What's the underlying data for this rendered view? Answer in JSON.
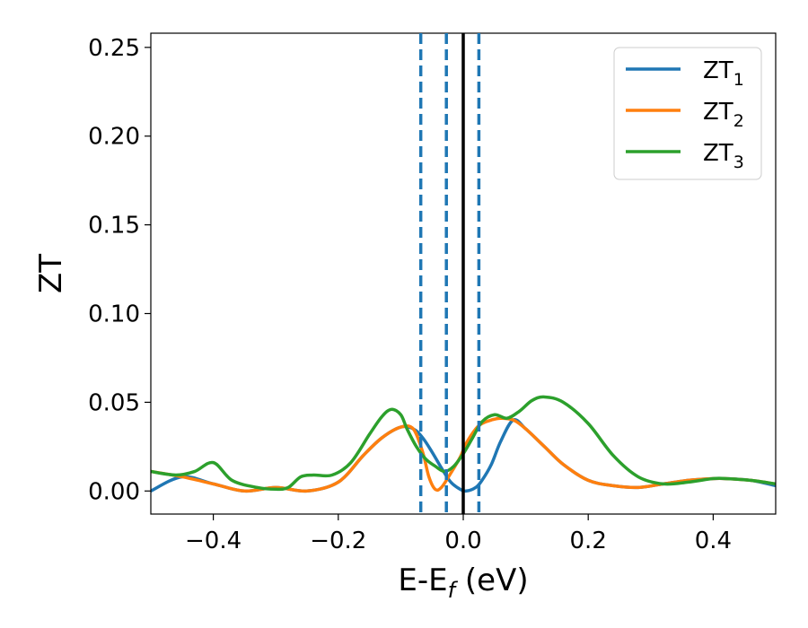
{
  "chart_data": {
    "type": "line",
    "xlabel": "E-E",
    "xlabel_sub": "f",
    "xlabel_unit": " (eV)",
    "ylabel": "ZT",
    "xlim": [
      -0.5,
      0.5
    ],
    "ylim": [
      -0.013,
      0.258
    ],
    "x_ticks": [
      -0.4,
      -0.2,
      0.0,
      0.2,
      0.4
    ],
    "x_tick_labels": [
      "−0.4",
      "−0.2",
      "0.0",
      "0.2",
      "0.4"
    ],
    "y_ticks": [
      0.0,
      0.05,
      0.1,
      0.15,
      0.2,
      0.25
    ],
    "y_tick_labels": [
      "0.00",
      "0.05",
      "0.10",
      "0.15",
      "0.20",
      "0.25"
    ],
    "grid": false,
    "legend_position": "top-right",
    "vertical_lines": [
      {
        "x": 0.0,
        "style": "solid",
        "color": "#000000"
      },
      {
        "x": -0.068,
        "style": "dashed",
        "color": "#1f77b4"
      },
      {
        "x": -0.027,
        "style": "dashed",
        "color": "#1f77b4"
      },
      {
        "x": 0.025,
        "style": "dashed",
        "color": "#1f77b4"
      }
    ],
    "series": [
      {
        "name": "ZT",
        "name_sub": "1",
        "color": "#1f77b4",
        "x": [
          -0.5,
          -0.45,
          -0.4,
          -0.35,
          -0.3,
          -0.25,
          -0.2,
          -0.16,
          -0.13,
          -0.1,
          -0.08,
          -0.065,
          -0.05,
          -0.035,
          -0.02,
          -0.005,
          0.005,
          0.02,
          0.03,
          0.045,
          0.06,
          0.08,
          0.1,
          0.13,
          0.16,
          0.2,
          0.24,
          0.28,
          0.32,
          0.36,
          0.4,
          0.42,
          0.46,
          0.5
        ],
        "y": [
          0.0,
          0.008,
          0.004,
          0.0,
          0.002,
          0.0,
          0.005,
          0.02,
          0.03,
          0.036,
          0.035,
          0.03,
          0.022,
          0.013,
          0.005,
          0.001,
          0.0,
          0.002,
          0.006,
          0.015,
          0.028,
          0.04,
          0.035,
          0.025,
          0.015,
          0.006,
          0.003,
          0.002,
          0.004,
          0.006,
          0.007,
          0.007,
          0.006,
          0.003
        ]
      },
      {
        "name": "ZT",
        "name_sub": "2",
        "color": "#ff7f0e",
        "x": [
          -0.5,
          -0.45,
          -0.4,
          -0.35,
          -0.3,
          -0.25,
          -0.2,
          -0.16,
          -0.13,
          -0.1,
          -0.08,
          -0.065,
          -0.055,
          -0.045,
          -0.035,
          -0.02,
          -0.005,
          0.005,
          0.02,
          0.03,
          0.045,
          0.06,
          0.08,
          0.1,
          0.13,
          0.16,
          0.2,
          0.24,
          0.28,
          0.32,
          0.36,
          0.4,
          0.42,
          0.46,
          0.5
        ],
        "y": [
          0.011,
          0.008,
          0.004,
          0.0,
          0.002,
          0.0,
          0.005,
          0.02,
          0.03,
          0.036,
          0.035,
          0.022,
          0.008,
          0.001,
          0.002,
          0.01,
          0.019,
          0.027,
          0.035,
          0.038,
          0.04,
          0.041,
          0.04,
          0.035,
          0.025,
          0.015,
          0.006,
          0.003,
          0.002,
          0.004,
          0.006,
          0.007,
          0.007,
          0.006,
          0.004
        ]
      },
      {
        "name": "ZT",
        "name_sub": "3",
        "color": "#2ca02c",
        "x": [
          -0.5,
          -0.46,
          -0.43,
          -0.4,
          -0.37,
          -0.33,
          -0.3,
          -0.28,
          -0.26,
          -0.24,
          -0.21,
          -0.18,
          -0.15,
          -0.13,
          -0.115,
          -0.1,
          -0.09,
          -0.075,
          -0.06,
          -0.045,
          -0.03,
          -0.015,
          0.0,
          0.015,
          0.03,
          0.05,
          0.07,
          0.09,
          0.11,
          0.13,
          0.16,
          0.2,
          0.24,
          0.28,
          0.32,
          0.36,
          0.4,
          0.42,
          0.46,
          0.5
        ],
        "y": [
          0.011,
          0.009,
          0.011,
          0.016,
          0.006,
          0.002,
          0.001,
          0.002,
          0.008,
          0.009,
          0.009,
          0.016,
          0.032,
          0.042,
          0.046,
          0.043,
          0.035,
          0.025,
          0.018,
          0.014,
          0.011,
          0.014,
          0.021,
          0.03,
          0.039,
          0.043,
          0.041,
          0.045,
          0.051,
          0.053,
          0.05,
          0.038,
          0.02,
          0.008,
          0.004,
          0.005,
          0.007,
          0.007,
          0.006,
          0.004
        ]
      }
    ]
  }
}
